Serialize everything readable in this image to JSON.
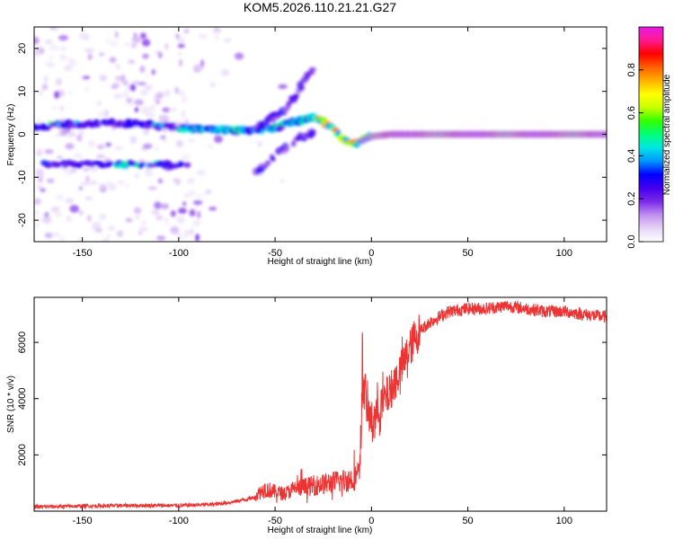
{
  "figure": {
    "title": "KOM5.2026.110.21.21.G27"
  },
  "chart_data": [
    {
      "type": "heatmap",
      "xlabel": "Height of straight line (km)",
      "ylabel": "Frequency (Hz)",
      "xlim": [
        -175,
        122
      ],
      "ylim": [
        -25,
        25
      ],
      "xticks": [
        -150,
        -100,
        -50,
        0,
        50,
        100
      ],
      "yticks": [
        -20,
        -10,
        0,
        10,
        20
      ],
      "colorbar": {
        "label": "Normalized spectral amplitude",
        "range": [
          0,
          1
        ],
        "ticks": [
          0,
          0.2,
          0.4,
          0.6,
          0.8
        ],
        "stops": [
          "#ffffff",
          "#e6d4f7",
          "#c08ef0",
          "#7a2ae8",
          "#4400ee",
          "#0000ff",
          "#0096ff",
          "#00e5e5",
          "#00ff7a",
          "#33ff00",
          "#c8ff00",
          "#ffff00",
          "#ffb000",
          "#ff6000",
          "#ff0000",
          "#ff1a90",
          "#e61ae6"
        ]
      },
      "ridge": [
        {
          "height": -170,
          "freq": 2.0
        },
        {
          "height": -150,
          "freq": 2.5
        },
        {
          "height": -120,
          "freq": 2.5
        },
        {
          "height": -100,
          "freq": 1.5
        },
        {
          "height": -80,
          "freq": 1.0
        },
        {
          "height": -60,
          "freq": 1.0
        },
        {
          "height": -50,
          "freq": 1.5
        },
        {
          "height": -40,
          "freq": 3.0
        },
        {
          "height": -30,
          "freq": 4.0
        },
        {
          "height": -20,
          "freq": 1.5
        },
        {
          "height": -15,
          "freq": -1.0
        },
        {
          "height": -10,
          "freq": -2.5
        },
        {
          "height": -5,
          "freq": -1.5
        },
        {
          "height": 0,
          "freq": -0.5
        },
        {
          "height": 10,
          "freq": 0.0
        },
        {
          "height": 50,
          "freq": 0.0
        },
        {
          "height": 120,
          "freq": 0.0
        }
      ],
      "secondary_ridge": [
        {
          "height": -170,
          "freq": -7.0
        },
        {
          "height": -130,
          "freq": -7.0
        },
        {
          "height": -110,
          "freq": -7.0
        },
        {
          "height": -95,
          "freq": -7.0
        }
      ],
      "oblique_streak_up": [
        {
          "height": -60,
          "freq": 1.0
        },
        {
          "height": -45,
          "freq": 6.0
        },
        {
          "height": -35,
          "freq": 12.0
        },
        {
          "height": -30,
          "freq": 15.0
        }
      ],
      "oblique_streak_down": [
        {
          "height": -60,
          "freq": -9.0
        },
        {
          "height": -45,
          "freq": -3.0
        },
        {
          "height": -30,
          "freq": 1.0
        }
      ]
    },
    {
      "type": "line",
      "xlabel": "Height of straight line (km)",
      "ylabel": "SNR (10 * v/v)",
      "xlim": [
        -175,
        122
      ],
      "ylim": [
        0,
        7600
      ],
      "xticks": [
        -150,
        -100,
        -50,
        0,
        50,
        100
      ],
      "yticks": [
        2000,
        4000,
        6000
      ],
      "line_color": "#ee3333",
      "series": [
        {
          "name": "SNR",
          "x": [
            -175,
            -150,
            -125,
            -100,
            -90,
            -80,
            -70,
            -60,
            -55,
            -50,
            -45,
            -40,
            -30,
            -20,
            -15,
            -10,
            -8,
            -6,
            -5,
            -4,
            -2,
            0,
            2,
            5,
            10,
            15,
            20,
            25,
            30,
            35,
            40,
            50,
            60,
            70,
            80,
            90,
            100,
            110,
            122
          ],
          "values": [
            150,
            180,
            200,
            200,
            220,
            250,
            350,
            500,
            700,
            600,
            550,
            700,
            800,
            900,
            950,
            1000,
            1100,
            1200,
            3500,
            4500,
            3500,
            3200,
            3400,
            3800,
            4300,
            5000,
            5800,
            6400,
            6700,
            6900,
            7100,
            7200,
            7200,
            7300,
            7200,
            7100,
            7100,
            7000,
            6900
          ]
        }
      ]
    }
  ]
}
